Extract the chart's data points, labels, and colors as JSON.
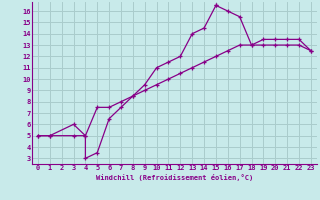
{
  "xlabel": "Windchill (Refroidissement éolien,°C)",
  "ylabel": "",
  "bg_color": "#c8eaea",
  "line_color": "#880088",
  "grid_color": "#aacccc",
  "xlim": [
    -0.5,
    23.5
  ],
  "ylim": [
    2.5,
    16.8
  ],
  "xticks": [
    0,
    1,
    2,
    3,
    4,
    5,
    6,
    7,
    8,
    9,
    10,
    11,
    12,
    13,
    14,
    15,
    16,
    17,
    18,
    19,
    20,
    21,
    22,
    23
  ],
  "yticks": [
    3,
    4,
    5,
    6,
    7,
    8,
    9,
    10,
    11,
    12,
    13,
    14,
    15,
    16
  ],
  "curve1_x": [
    0,
    1,
    3,
    4,
    4,
    5,
    6,
    7,
    8,
    9,
    10,
    11,
    12,
    13,
    14,
    15,
    15,
    16,
    17,
    18,
    19,
    20,
    21,
    22,
    23
  ],
  "curve1_y": [
    5,
    5,
    6,
    5,
    3,
    3.5,
    6.5,
    7.5,
    8.5,
    9.5,
    11,
    11.5,
    12,
    14,
    14.5,
    16.5,
    16.5,
    16,
    15.5,
    13,
    13.5,
    13.5,
    13.5,
    13.5,
    12.5
  ],
  "curve2_x": [
    0,
    1,
    3,
    4,
    5,
    6,
    7,
    8,
    9,
    10,
    11,
    12,
    13,
    14,
    15,
    16,
    17,
    18,
    19,
    20,
    21,
    22,
    23
  ],
  "curve2_y": [
    5,
    5,
    5,
    5,
    7.5,
    7.5,
    8.0,
    8.5,
    9.0,
    9.5,
    10.0,
    10.5,
    11.0,
    11.5,
    12.0,
    12.5,
    13.0,
    13.0,
    13.0,
    13.0,
    13.0,
    13.0,
    12.5
  ]
}
